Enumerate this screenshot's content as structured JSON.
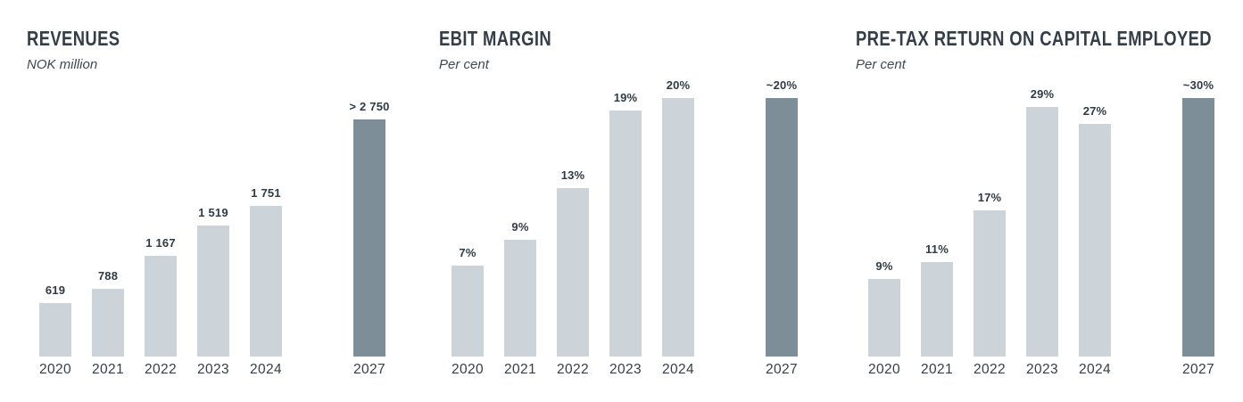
{
  "colors": {
    "bar_light": "#ccd4da",
    "bar_highlight": "#7e8e99",
    "text": "#333e48"
  },
  "chart_data": [
    {
      "type": "bar",
      "title": "REVENUES",
      "subtitle": "NOK million",
      "xlabel": "",
      "ylabel": "NOK million",
      "categories": [
        "2020",
        "2021",
        "2022",
        "2023",
        "2024",
        "2027"
      ],
      "values": [
        619,
        788,
        1167,
        1519,
        1751,
        2750
      ],
      "value_labels": [
        "619",
        "788",
        "1 167",
        "1 519",
        "1 751",
        "> 2 750"
      ],
      "highlight_index": 5,
      "ylim": [
        0,
        3000
      ],
      "grid": false,
      "legend": false
    },
    {
      "type": "bar",
      "title": "EBIT MARGIN",
      "subtitle": "Per cent",
      "xlabel": "",
      "ylabel": "Per cent",
      "categories": [
        "2020",
        "2021",
        "2022",
        "2023",
        "2024",
        "2027"
      ],
      "values": [
        7,
        9,
        13,
        19,
        20,
        20
      ],
      "value_labels": [
        "7%",
        "9%",
        "13%",
        "19%",
        "20%",
        "~20%"
      ],
      "highlight_index": 5,
      "ylim": [
        0,
        20
      ],
      "grid": false,
      "legend": false
    },
    {
      "type": "bar",
      "title": "PRE-TAX RETURN ON CAPITAL EMPLOYED",
      "subtitle": "Per cent",
      "xlabel": "",
      "ylabel": "Per cent",
      "categories": [
        "2020",
        "2021",
        "2022",
        "2023",
        "2024",
        "2027"
      ],
      "values": [
        9,
        11,
        17,
        29,
        27,
        30
      ],
      "value_labels": [
        "9%",
        "11%",
        "17%",
        "29%",
        "27%",
        "~30%"
      ],
      "highlight_index": 5,
      "ylim": [
        0,
        30
      ],
      "grid": false,
      "legend": false
    }
  ]
}
